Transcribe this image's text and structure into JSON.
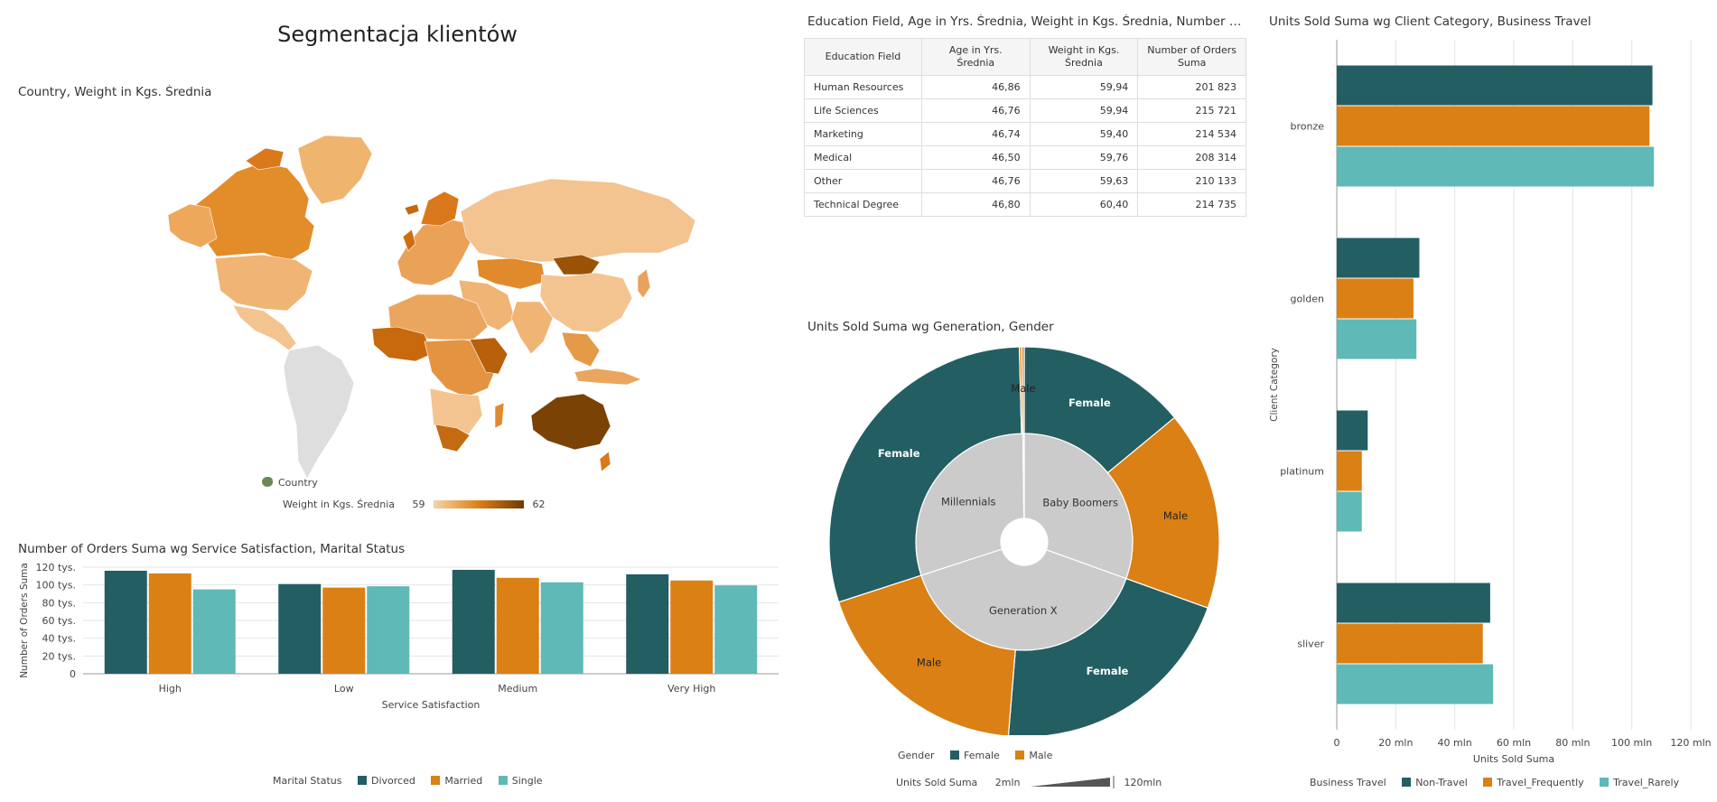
{
  "dashboard_title": "Segmentacja klientów",
  "colors": {
    "teal_dark": "#235e63",
    "orange": "#db8014",
    "teal_light": "#5fb9b6",
    "map_light": "#f3c490",
    "map_dark": "#7a4205",
    "map_gray": "#dedede",
    "inner_gray": "#cbcbcb"
  },
  "map_panel": {
    "title": "Country, Weight in Kgs. Średnia",
    "legend_shape": "Country",
    "legend_color_label": "Weight in Kgs. Średnia",
    "legend_min": "59",
    "legend_max": "62"
  },
  "table_panel": {
    "title": "Education Field, Age in Yrs. Średnia, Weight in Kgs. Średnia, Number of …",
    "headers": [
      "Education Field",
      "Age in Yrs. Średnia",
      "Weight in Kgs. Średnia",
      "Number of Orders Suma"
    ],
    "rows": [
      [
        "Human Resources",
        "46,86",
        "59,94",
        "201 823"
      ],
      [
        "Life Sciences",
        "46,76",
        "59,94",
        "215 721"
      ],
      [
        "Marketing",
        "46,74",
        "59,40",
        "214 534"
      ],
      [
        "Medical",
        "46,50",
        "59,76",
        "208 314"
      ],
      [
        "Other",
        "46,76",
        "59,63",
        "210 133"
      ],
      [
        "Technical Degree",
        "46,80",
        "60,40",
        "214 735"
      ]
    ]
  },
  "chart_data": [
    {
      "type": "bar",
      "title": "Number of Orders Suma wg Service Satisfaction, Marital Status",
      "xlabel": "Service Satisfaction",
      "ylabel": "Number of Orders Suma",
      "categories": [
        "High",
        "Low",
        "Medium",
        "Very High"
      ],
      "series": [
        {
          "name": "Divorced",
          "values": [
            116000,
            101000,
            117000,
            112000
          ]
        },
        {
          "name": "Married",
          "values": [
            113000,
            97000,
            108000,
            105000
          ]
        },
        {
          "name": "Single",
          "values": [
            95000,
            98500,
            103000,
            99500
          ]
        }
      ],
      "ylim": [
        0,
        120000
      ],
      "yticks": [
        0,
        20000,
        40000,
        60000,
        80000,
        100000,
        120000
      ],
      "ytick_labels": [
        "0",
        "20 tys.",
        "40 tys.",
        "60 tys.",
        "80 tys.",
        "100 tys.",
        "120 tys."
      ],
      "legend_title": "Marital Status",
      "legend_position": "bottom",
      "grid": true
    },
    {
      "type": "pie",
      "title": "Units Sold Suma wg Generation, Gender",
      "inner_ring": [
        {
          "label": "Baby Boomers",
          "value": 30.5
        },
        {
          "label": "Generation X",
          "value": 39.5
        },
        {
          "label": "Millennials",
          "value": 29.8
        },
        {
          "label": "",
          "value": 0.2
        }
      ],
      "outer_ring": [
        {
          "label": "Female",
          "gender": "Female",
          "value": 14.0
        },
        {
          "label": "Male",
          "gender": "Male",
          "value": 16.5
        },
        {
          "label": "Female",
          "gender": "Female",
          "value": 20.8
        },
        {
          "label": "Male",
          "gender": "Male",
          "value": 18.7
        },
        {
          "label": "Female",
          "gender": "Female",
          "value": 29.6
        },
        {
          "label": "",
          "gender": "Male",
          "value": 0.2
        },
        {
          "label": "Male",
          "gender": "Male",
          "value": 0.2
        }
      ],
      "legend_title": "Gender",
      "legend_entries": [
        "Female",
        "Male"
      ],
      "size_legend_title": "Units Sold Suma",
      "size_legend_min": "2mln",
      "size_legend_max": "120mln"
    },
    {
      "type": "bar",
      "orientation": "horizontal",
      "title": "Units Sold Suma wg Client Category, Business Travel",
      "xlabel": "Units Sold Suma",
      "ylabel": "Client Category",
      "categories": [
        "bronze",
        "golden",
        "platinum",
        "sliver"
      ],
      "series": [
        {
          "name": "Non-Travel",
          "values": [
            107000000,
            28000000,
            10500000,
            52000000
          ]
        },
        {
          "name": "Travel_Frequently",
          "values": [
            106000000,
            26000000,
            8500000,
            49500000
          ]
        },
        {
          "name": "Travel_Rarely",
          "values": [
            107500000,
            27000000,
            8500000,
            53000000
          ]
        }
      ],
      "xlim": [
        0,
        120000000
      ],
      "xticks": [
        0,
        20000000,
        40000000,
        60000000,
        80000000,
        100000000,
        120000000
      ],
      "xtick_labels": [
        "0",
        "20 mln",
        "40 mln",
        "60 mln",
        "80 mln",
        "100 mln",
        "120 mln"
      ],
      "legend_title": "Business Travel",
      "legend_position": "bottom",
      "grid": true
    }
  ]
}
